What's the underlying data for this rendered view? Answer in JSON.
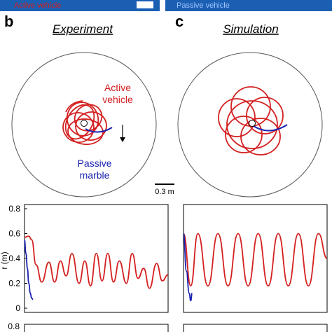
{
  "colors": {
    "active": "#d42020",
    "passive": "#1a22b0",
    "banner": "#1b5fb3"
  },
  "panels": {
    "b": {
      "letter": "b",
      "title": "Experiment"
    },
    "c": {
      "letter": "c",
      "title": "Simulation"
    }
  },
  "labels": {
    "active_vehicle_line1": "Active",
    "active_vehicle_line2": "vehicle",
    "passive_marble_line1": "Passive",
    "passive_marble_line2": "marble",
    "scalebar": "0.3 m"
  },
  "banner": {
    "left_text": "Active vehicle",
    "right_text": "Passive vehicle"
  },
  "chart_data": [
    {
      "type": "line",
      "ylabel": "r (m)",
      "ylim": [
        0,
        0.8
      ],
      "yticks": [
        "0.8",
        "0.6",
        "0.4",
        "0.2",
        "0"
      ],
      "series": [
        {
          "color": "#d42020",
          "x": [
            0,
            0.03,
            0.05,
            0.08,
            0.12,
            0.17,
            0.21,
            0.25,
            0.29,
            0.33,
            0.38,
            0.42,
            0.46,
            0.5,
            0.54,
            0.58,
            0.62,
            0.66,
            0.71,
            0.75,
            0.79,
            0.83,
            0.87,
            0.92,
            0.96,
            1.0
          ],
          "y": [
            0.57,
            0.58,
            0.55,
            0.35,
            0.21,
            0.37,
            0.21,
            0.38,
            0.26,
            0.44,
            0.2,
            0.38,
            0.18,
            0.44,
            0.22,
            0.44,
            0.21,
            0.38,
            0.2,
            0.44,
            0.24,
            0.32,
            0.16,
            0.36,
            0.22,
            0.27
          ]
        },
        {
          "color": "#1a22b0",
          "x": [
            0,
            0.01,
            0.02,
            0.03,
            0.04,
            0.05,
            0.06
          ],
          "y": [
            0.55,
            0.44,
            0.32,
            0.2,
            0.12,
            0.08,
            0.07
          ]
        }
      ]
    },
    {
      "type": "line",
      "ylim": [
        0,
        0.8
      ],
      "series": [
        {
          "color": "#d42020",
          "x": [
            0,
            0.05,
            0.1,
            0.17,
            0.24,
            0.31,
            0.38,
            0.45,
            0.52,
            0.59,
            0.66,
            0.73,
            0.8,
            0.87,
            0.94,
            1.0
          ],
          "y": [
            0.6,
            0.18,
            0.6,
            0.18,
            0.6,
            0.18,
            0.6,
            0.18,
            0.6,
            0.18,
            0.6,
            0.18,
            0.6,
            0.18,
            0.6,
            0.4
          ]
        },
        {
          "color": "#1a22b0",
          "x": [
            0,
            0.02,
            0.04,
            0.05,
            0.06
          ],
          "y": [
            0.6,
            0.3,
            0.12,
            0.06,
            0.12
          ]
        }
      ]
    }
  ]
}
